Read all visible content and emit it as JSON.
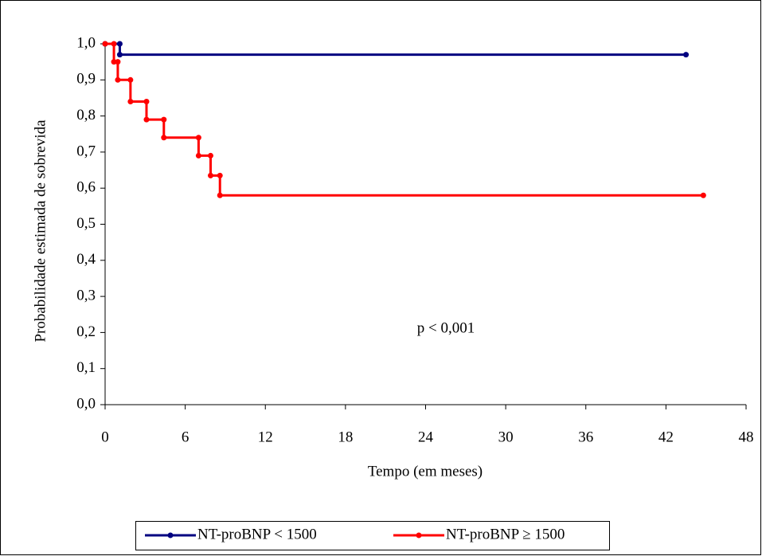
{
  "chart_data": {
    "type": "line",
    "xlabel": "Tempo (em meses)",
    "ylabel": "Probabilidade estimada de sobrevida",
    "annotation": "p < 0,001",
    "xlim": [
      0,
      48
    ],
    "xticks": [
      0,
      6,
      12,
      18,
      24,
      30,
      36,
      42,
      48
    ],
    "ylim": [
      0,
      1
    ],
    "yticks": [
      {
        "value": 0,
        "label": "0,0"
      },
      {
        "value": 0.1,
        "label": "0,1"
      },
      {
        "value": 0.2,
        "label": "0,2"
      },
      {
        "value": 0.3,
        "label": "0,3"
      },
      {
        "value": 0.4,
        "label": "0,4"
      },
      {
        "value": 0.5,
        "label": "0,5"
      },
      {
        "value": 0.6,
        "label": "0,6"
      },
      {
        "value": 0.7,
        "label": "0,7"
      },
      {
        "value": 0.8,
        "label": "0,8"
      },
      {
        "value": 0.9,
        "label": "0,9"
      },
      {
        "value": 1,
        "label": "1,0"
      }
    ],
    "legend": "bottom",
    "series": [
      {
        "name": "NT-proBNP < 1500",
        "color": "#000080",
        "x": [
          0,
          1.1,
          1.1,
          43.5
        ],
        "values": [
          1,
          1,
          0.97,
          0.97
        ]
      },
      {
        "name": "NT-proBNP ≥ 1500",
        "color": "#ff0000",
        "x": [
          0,
          0.66,
          0.66,
          0.95,
          0.95,
          1.9,
          1.9,
          3.1,
          3.1,
          4.4,
          4.4,
          7.0,
          7.0,
          7.9,
          7.9,
          8.6,
          8.6,
          44.8
        ],
        "values": [
          1,
          1,
          0.95,
          0.95,
          0.9,
          0.9,
          0.84,
          0.84,
          0.79,
          0.79,
          0.74,
          0.74,
          0.69,
          0.69,
          0.635,
          0.635,
          0.58,
          0.58
        ]
      }
    ]
  }
}
